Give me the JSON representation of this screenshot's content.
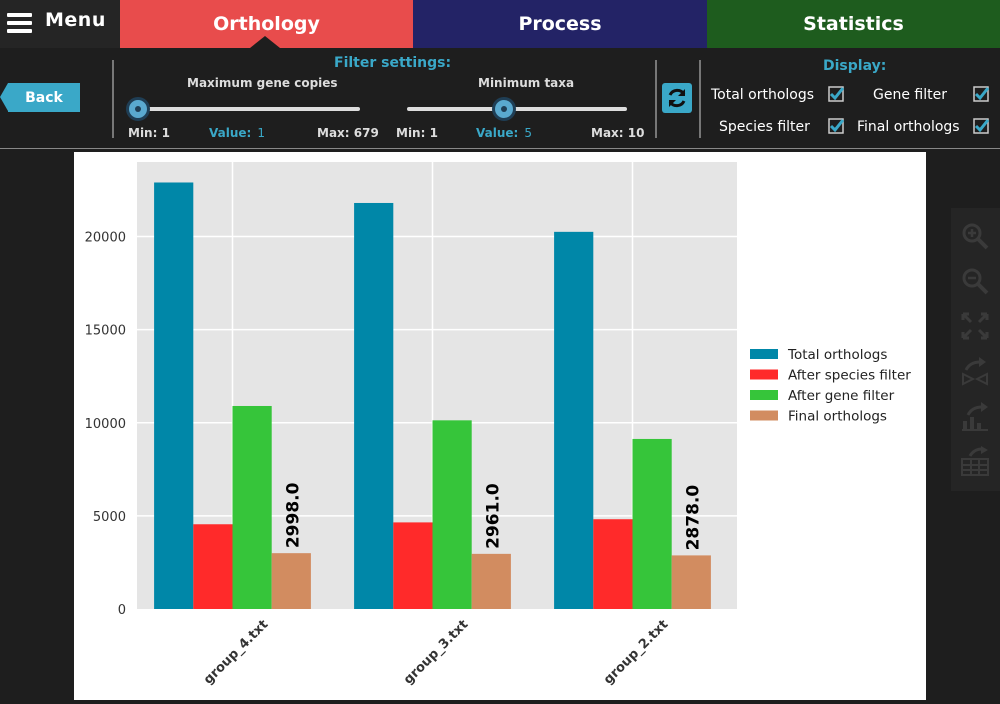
{
  "topbar": {
    "menu_label": "Menu",
    "tabs": [
      {
        "label": "Orthology",
        "color": "#e84c4c"
      },
      {
        "label": "Process",
        "color": "#232366"
      },
      {
        "label": "Statistics",
        "color": "#1e5c1e"
      }
    ]
  },
  "toolbar": {
    "back_label": "Back",
    "filter_title": "Filter settings:",
    "slider_gene": {
      "title": "Maximum gene copies",
      "min_label": "Min: 1",
      "value_label": "Value:",
      "value": "1",
      "max_label": "Max: 679",
      "min": 1,
      "max": 679,
      "current": 1
    },
    "slider_taxa": {
      "title": "Minimum taxa",
      "min_label": "Min: 1",
      "value_label": "Value:",
      "value": "5",
      "max_label": "Max: 10",
      "min": 1,
      "max": 10,
      "current": 5
    },
    "display_title": "Display:",
    "checkboxes": [
      {
        "label": "Total orthologs",
        "checked": true
      },
      {
        "label": "Gene filter",
        "checked": true
      },
      {
        "label": "Species filter",
        "checked": true
      },
      {
        "label": "Final orthologs",
        "checked": true
      }
    ]
  },
  "side_tools": [
    "zoom-in-icon",
    "zoom-out-icon",
    "fit-icon",
    "rotate-icon",
    "export-chart-icon",
    "export-table-icon"
  ],
  "chart_data": {
    "type": "bar",
    "categories": [
      "group_4.txt",
      "group_3.txt",
      "group_2.txt"
    ],
    "series": [
      {
        "name": "Total orthologs",
        "color": "#0087a8",
        "values": [
          22900,
          21800,
          20250
        ]
      },
      {
        "name": "After species filter",
        "color": "#ff2a2a",
        "values": [
          4550,
          4650,
          4820
        ]
      },
      {
        "name": "After gene filter",
        "color": "#36c53a",
        "values": [
          10900,
          10130,
          9130
        ]
      },
      {
        "name": "Final orthologs",
        "color": "#d28c60",
        "values": [
          2998,
          2961,
          2878
        ]
      }
    ],
    "bar_labels": [
      "2998.0",
      "2961.0",
      "2878.0"
    ],
    "ylim": [
      0,
      24000
    ],
    "yticks": [
      0,
      5000,
      10000,
      15000,
      20000
    ],
    "xlabel": "",
    "ylabel": "",
    "title": "",
    "grid": true,
    "legend": "right"
  }
}
